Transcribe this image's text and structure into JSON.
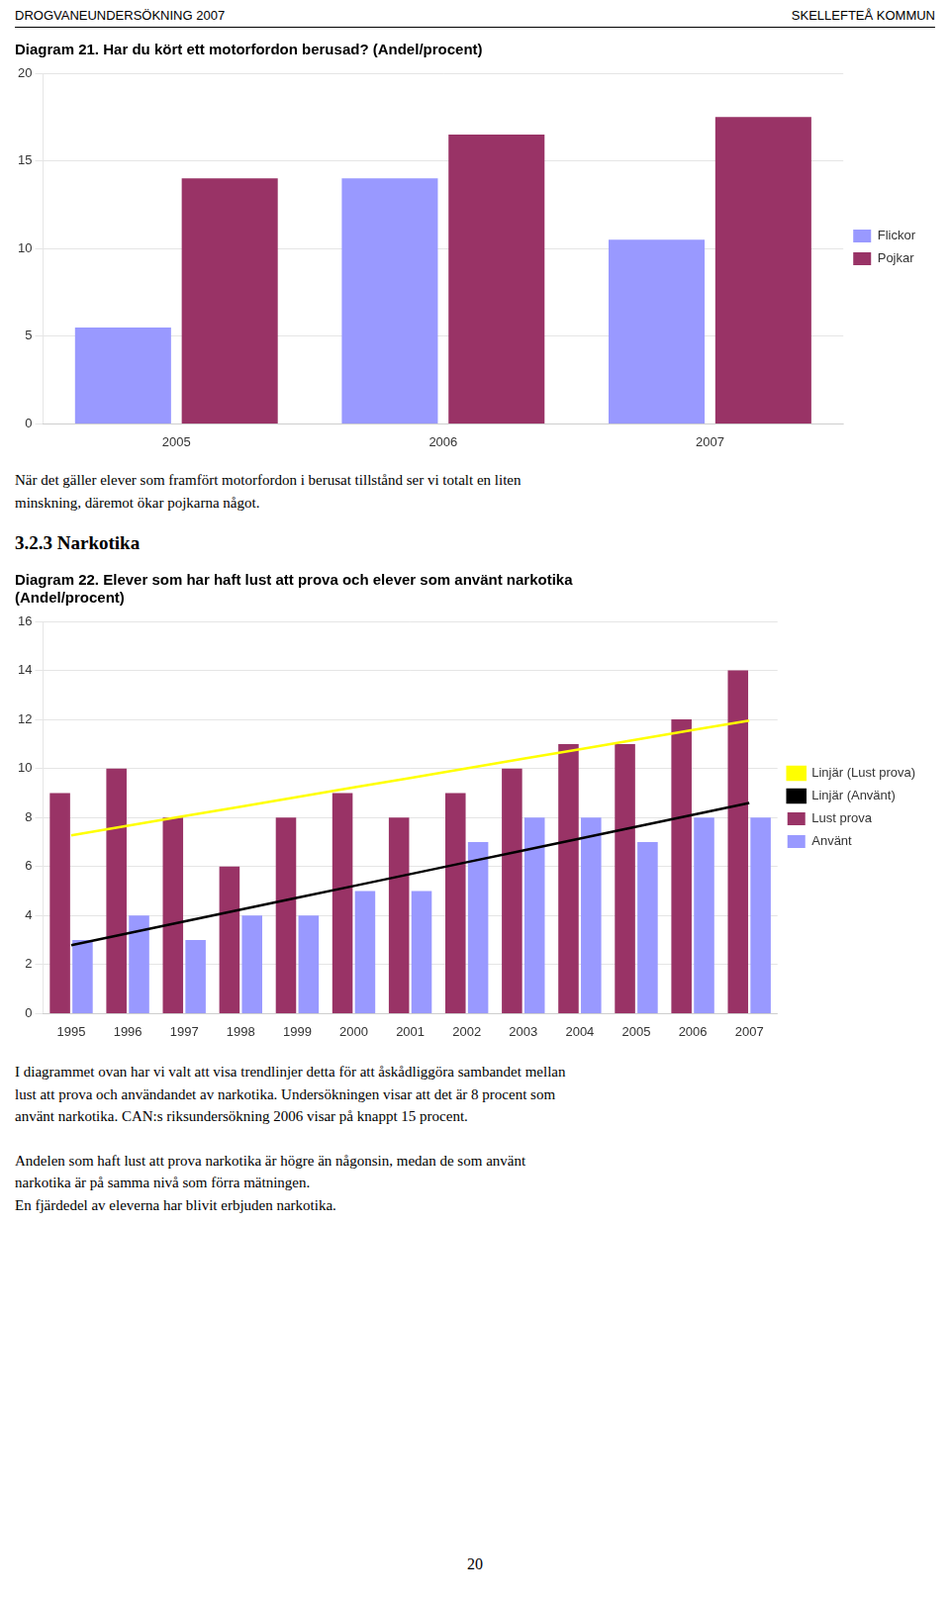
{
  "header": [
    "DROGVANEUNDERSÖKNING 2007",
    "SKELLEFTEÅ KOMMUN"
  ],
  "section": "3.2.3 Narkotika",
  "page_number": "20",
  "chart_data": [
    {
      "type": "bar",
      "title": [
        "Diagram 21. Har du kört ett motorfordon berusad? (Andel/procent)"
      ],
      "categories": [
        "2005",
        "2006",
        "2007"
      ],
      "series": [
        {
          "name": "Flickor",
          "color": "#9999FF",
          "values": [
            5.5,
            14.0,
            10.5
          ]
        },
        {
          "name": "Pojkar",
          "color": "#993366",
          "values": [
            14.0,
            16.5,
            17.5
          ]
        }
      ],
      "ylim": [
        0,
        20
      ],
      "yticks": [
        0,
        5,
        10,
        15,
        20
      ],
      "grid": true,
      "legend": "right",
      "text_after": [
        [
          "När det gäller elever som framfört motorfordon i berusat tillstånd ser vi totalt en liten",
          "minskning, däremot ökar pojkarna något."
        ]
      ]
    },
    {
      "type": "bar",
      "title": [
        "Diagram 22. Elever som har haft lust att prova och elever som använt narkotika",
        "(Andel/procent)"
      ],
      "categories": [
        "1995",
        "1996",
        "1997",
        "1998",
        "1999",
        "2000",
        "2001",
        "2002",
        "2003",
        "2004",
        "2005",
        "2006",
        "2007"
      ],
      "series": [
        {
          "name": "Lust prova",
          "color": "#993366",
          "values": [
            9,
            10,
            8,
            6,
            8,
            9,
            8,
            9,
            10,
            11,
            11,
            12,
            14
          ]
        },
        {
          "name": "Använt",
          "color": "#9999FF",
          "values": [
            3,
            4,
            3,
            4,
            4,
            5,
            5,
            7,
            8,
            8,
            7,
            8,
            8
          ]
        },
        {
          "name": "Linjär (Lust prova)",
          "type": "line",
          "marker": "none",
          "line_style": "solid",
          "color": "#FFFF00",
          "values": [
            7.2747,
            7.6648,
            8.0549,
            8.4451,
            8.8352,
            9.2253,
            9.6154,
            10.0055,
            10.3956,
            10.7857,
            11.1758,
            11.5659,
            11.956
          ]
        },
        {
          "name": "Linjär (Använt)",
          "type": "line",
          "marker": "none",
          "line_style": "solid",
          "color": "#000000",
          "values": [
            2.7912,
            3.2747,
            3.7582,
            4.2418,
            4.7253,
            5.2088,
            5.6923,
            6.1758,
            6.6593,
            7.1429,
            7.6264,
            8.1099,
            8.5934
          ]
        }
      ],
      "ylim": [
        0,
        16
      ],
      "yticks": [
        0,
        2,
        4,
        6,
        8,
        10,
        12,
        14,
        16
      ],
      "grid": true,
      "legend": "right",
      "text_after": [
        [
          "I diagrammet ovan har vi valt att visa trendlinjer detta för att åskådliggöra sambandet mellan",
          "lust att prova och användandet av narkotika. Undersökningen visar att det är 8 procent som",
          "använt narkotika. CAN:s riksundersökning 2006 visar på knappt 15 procent."
        ],
        [
          "Andelen som haft lust att prova narkotika är högre än någonsin, medan de som använt",
          "narkotika är på samma nivå som förra mätningen.",
          "En fjärdedel av eleverna har blivit erbjuden narkotika."
        ]
      ]
    }
  ]
}
